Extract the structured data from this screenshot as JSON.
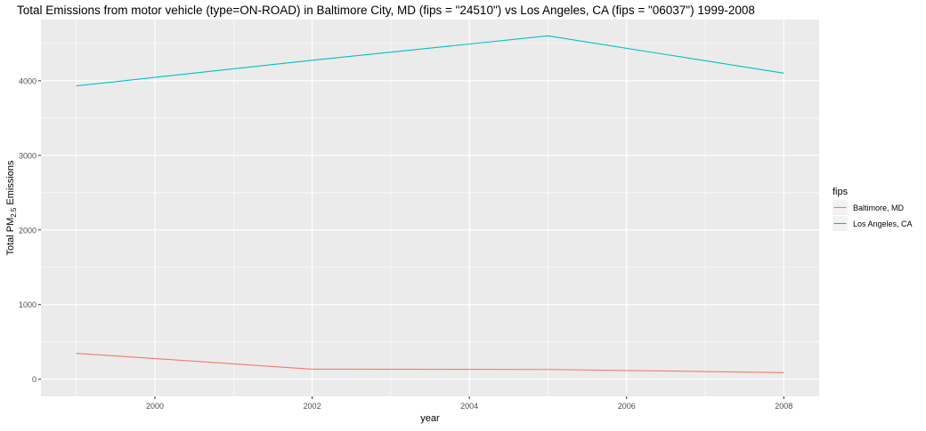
{
  "chart_data": {
    "type": "line",
    "title": "Total Emissions from motor vehicle (type=ON-ROAD) in Baltimore City, MD (fips = \"24510\") vs Los Angeles, CA (fips = \"06037\")  1999-2008",
    "xlabel": "year",
    "ylabel_prefix": "Total PM",
    "ylabel_subscript": "2.5",
    "ylabel_suffix": " Emissions",
    "xlim": [
      1998.55,
      2008.45
    ],
    "ylim": [
      -230,
      4820
    ],
    "x_ticks": [
      2000,
      2002,
      2004,
      2006,
      2008
    ],
    "x_tick_labels": [
      "2000",
      "2002",
      "2004",
      "2006",
      "2008"
    ],
    "y_ticks": [
      0,
      1000,
      2000,
      3000,
      4000
    ],
    "y_tick_labels": [
      "0",
      "1000",
      "2000",
      "3000",
      "4000"
    ],
    "grid": true,
    "legend": {
      "title": "fips",
      "position": "right"
    },
    "series": [
      {
        "name": "Baltimore, MD",
        "color": "#F8766D",
        "x": [
          1999,
          2002,
          2005,
          2008
        ],
        "y": [
          346.82,
          134.31,
          130.43,
          88.28
        ]
      },
      {
        "name": "Los Angeles, CA",
        "color": "#00BFC4",
        "x": [
          1999,
          2002,
          2005,
          2008
        ],
        "y": [
          3931.12,
          4274.03,
          4601.41,
          4101.32
        ]
      }
    ]
  }
}
